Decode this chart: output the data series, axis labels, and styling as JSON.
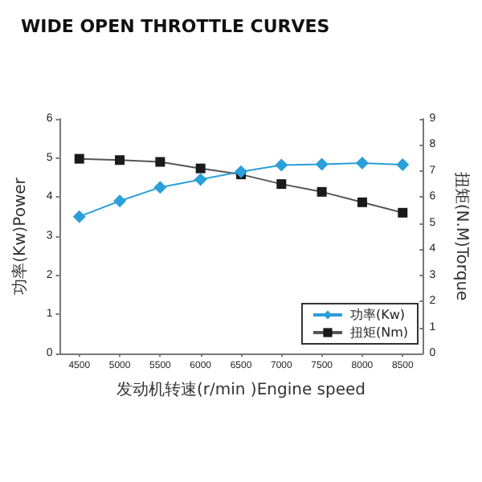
{
  "chart_data": {
    "type": "line",
    "title": "WIDE OPEN THROTTLE CURVES",
    "xlabel": "发动机转速(r/min )Engine speed",
    "ylabel": "功率(Kw)Power",
    "y2label": "扭矩(N.M)Torque",
    "categories": [
      "4500",
      "5000",
      "5500",
      "6000",
      "6500",
      "7000",
      "7500",
      "8000",
      "8500"
    ],
    "series": [
      {
        "name": "功率(Kw)",
        "color": "#2a9fd8",
        "marker": "diamond",
        "values": [
          3.5,
          3.9,
          4.25,
          4.45,
          4.65,
          4.82,
          4.84,
          4.87,
          4.83
        ]
      },
      {
        "name": "扭矩(Nm)",
        "color": "#1a1a1a",
        "marker": "square",
        "axis": "y2",
        "values": [
          7.47,
          7.42,
          7.35,
          7.1,
          6.87,
          6.5,
          6.2,
          5.8,
          5.4
        ]
      }
    ],
    "ylim": [
      0,
      6
    ],
    "yticks": [
      0,
      1,
      2,
      3,
      4,
      5,
      6
    ],
    "y2lim": [
      0,
      9
    ],
    "y2ticks": [
      0,
      1,
      2,
      3,
      4,
      5,
      6,
      7,
      8,
      9
    ],
    "grid": false,
    "legend": "bottom right"
  }
}
